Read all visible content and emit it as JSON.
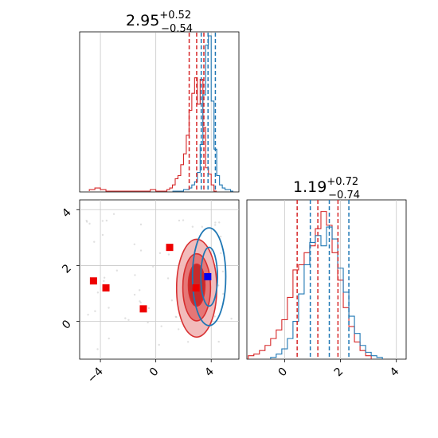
{
  "chart_data": {
    "type": "corner",
    "colors": {
      "red": "#d62728",
      "blue": "#1f77b4",
      "grid": "#c8c8c8"
    },
    "param1": {
      "title_value": "2.95",
      "title_plus": "+0.52",
      "title_minus": "−0.54",
      "xlim": [
        -5.5,
        6.0
      ],
      "ticks": [
        -4,
        0,
        4
      ],
      "tick_labels": [
        "−4",
        "0",
        "4"
      ],
      "red_quantiles": [
        2.41,
        2.95,
        3.47
      ],
      "blue_quantiles": [
        3.28,
        3.77,
        4.3
      ],
      "red_hist": {
        "bins": [
          -4.8,
          -4.4,
          -4.0,
          -3.6,
          -3.2,
          -2.8,
          -2.4,
          -2.0,
          -1.6,
          -1.2,
          -0.8,
          -0.4,
          0.0,
          0.4,
          0.8,
          1.0,
          1.2,
          1.4,
          1.6,
          1.8,
          2.0,
          2.2,
          2.4,
          2.6,
          2.8,
          3.0,
          3.2,
          3.4,
          3.6,
          3.8,
          4.0,
          4.2,
          4.4
        ],
        "counts": [
          0.01,
          0.02,
          0.01,
          0.0,
          0.0,
          0.0,
          0.0,
          0.0,
          0.0,
          0.0,
          0.0,
          0.01,
          0.0,
          0.0,
          0.01,
          0.02,
          0.04,
          0.08,
          0.1,
          0.17,
          0.24,
          0.36,
          0.52,
          0.63,
          0.73,
          0.56,
          0.72,
          0.41,
          0.15,
          0.11,
          0.04,
          0.0
        ]
      },
      "blue_hist": {
        "bins": [
          1.2,
          1.6,
          2.0,
          2.2,
          2.4,
          2.6,
          2.8,
          3.0,
          3.2,
          3.4,
          3.6,
          3.8,
          4.0,
          4.2,
          4.4,
          4.6,
          4.8,
          5.0,
          5.2,
          5.4,
          5.6
        ],
        "counts": [
          0.0,
          0.0,
          0.01,
          0.01,
          0.02,
          0.04,
          0.06,
          0.12,
          0.3,
          0.62,
          0.94,
          1.0,
          0.58,
          0.27,
          0.1,
          0.04,
          0.02,
          0.01,
          0.01,
          0.0
        ]
      }
    },
    "param2": {
      "title_value": "1.19",
      "title_plus": "+0.72",
      "title_minus": "−0.74",
      "xlim": [
        -1.35,
        4.35
      ],
      "ylim": [
        -1.35,
        4.35
      ],
      "ticks": [
        0,
        2,
        4
      ],
      "tick_labels": [
        "0",
        "2",
        "4"
      ],
      "red_quantiles": [
        0.45,
        1.19,
        1.91
      ],
      "blue_quantiles": [
        0.92,
        1.6,
        2.3
      ],
      "red_hist": {
        "bins": [
          -1.3,
          -1.1,
          -0.9,
          -0.7,
          -0.5,
          -0.3,
          -0.1,
          0.1,
          0.3,
          0.5,
          0.7,
          0.9,
          1.1,
          1.3,
          1.5,
          1.7,
          1.9,
          2.1,
          2.3,
          2.5,
          2.7,
          2.9,
          3.1
        ],
        "counts": [
          0.02,
          0.03,
          0.05,
          0.08,
          0.12,
          0.17,
          0.23,
          0.36,
          0.52,
          0.55,
          0.62,
          0.66,
          0.76,
          0.86,
          0.78,
          0.62,
          0.46,
          0.3,
          0.19,
          0.1,
          0.05,
          0.02
        ]
      },
      "blue_hist": {
        "bins": [
          -0.5,
          -0.3,
          -0.1,
          0.1,
          0.3,
          0.5,
          0.7,
          0.9,
          1.1,
          1.3,
          1.5,
          1.7,
          1.9,
          2.1,
          2.3,
          2.5,
          2.7,
          2.9,
          3.1,
          3.3,
          3.5
        ],
        "counts": [
          0.01,
          0.03,
          0.06,
          0.12,
          0.22,
          0.38,
          0.55,
          0.68,
          0.72,
          0.66,
          0.77,
          0.7,
          0.53,
          0.39,
          0.25,
          0.15,
          0.08,
          0.04,
          0.02,
          0.01
        ]
      }
    },
    "joint": {
      "red_points": [
        [
          -4.5,
          1.45
        ],
        [
          -3.6,
          1.2
        ],
        [
          -0.9,
          0.45
        ],
        [
          1.0,
          2.65
        ],
        [
          2.9,
          1.2
        ]
      ],
      "blue_points": [
        [
          3.75,
          1.6
        ]
      ],
      "red_contours": [
        {
          "level": "outer",
          "cx": 2.95,
          "cy": 1.19,
          "rx": 1.45,
          "ry": 1.75
        },
        {
          "level": "mid",
          "cx": 2.95,
          "cy": 1.22,
          "rx": 1.0,
          "ry": 1.2
        },
        {
          "level": "inner",
          "cx": 2.95,
          "cy": 1.3,
          "rx": 0.6,
          "ry": 0.75
        }
      ],
      "blue_contours": [
        {
          "level": "outer",
          "cx": 3.85,
          "cy": 1.6,
          "rx": 1.2,
          "ry": 1.75
        },
        {
          "level": "inner",
          "cx": 3.85,
          "cy": 1.6,
          "rx": 0.6,
          "ry": 1.05
        }
      ]
    }
  }
}
